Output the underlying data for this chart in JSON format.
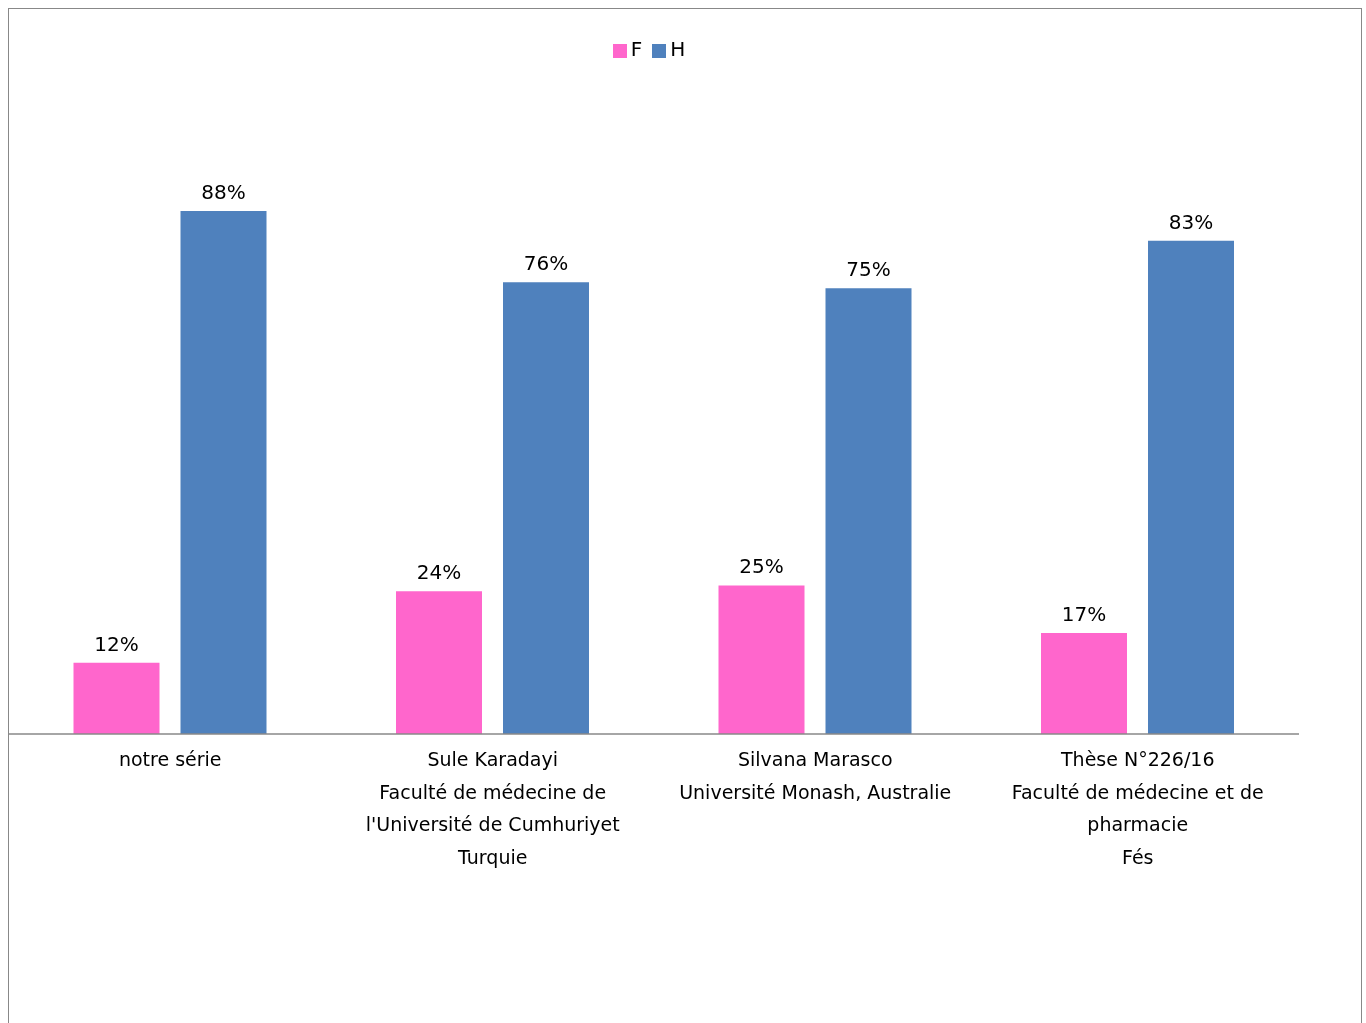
{
  "chart_data": {
    "type": "bar",
    "categories": [
      "notre série",
      "Sule Karadayi\nFaculté de médecine de\nl'Université de Cumhuriyet\nTurquie",
      "Silvana Marasco\nUniversité Monash, Australie",
      "Thèse N°226/16\nFaculté de médecine et de\npharmacie\nFés"
    ],
    "series": [
      {
        "name": "F",
        "color": "#ff66cc",
        "values": [
          12,
          24,
          25,
          17
        ],
        "value_labels": [
          "12%",
          "24%",
          "25%",
          "17%"
        ]
      },
      {
        "name": "H",
        "color": "#4f81bd",
        "values": [
          88,
          76,
          75,
          83
        ],
        "value_labels": [
          "88%",
          "76%",
          "75%",
          "83%"
        ]
      }
    ],
    "legend": "top",
    "grid": false
  }
}
